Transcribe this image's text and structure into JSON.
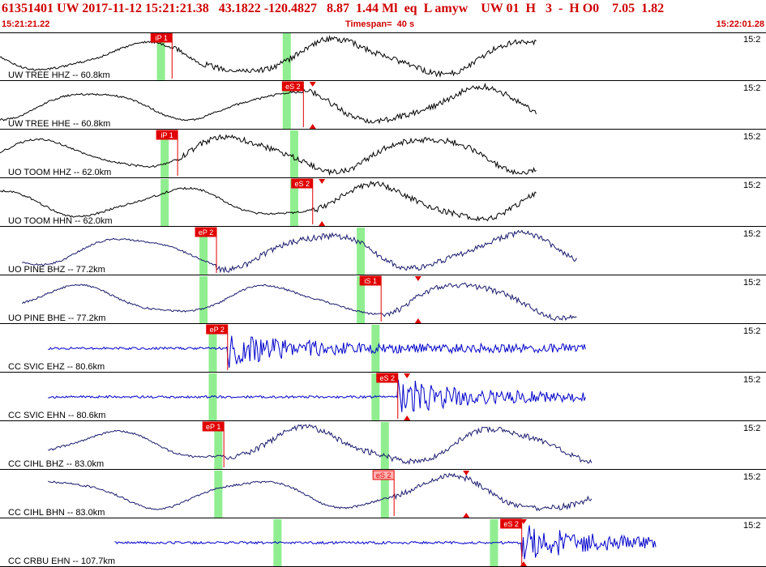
{
  "header": {
    "title": "61351401 UW 2017-11-12 15:21:21.38   43.1822 -120.4827   8.87  1.44 Ml  eq  L amyw    UW 01  H   3  -  H O0    7.05  1.82",
    "start_time": "15:21:21.22",
    "timespan": "Timespan=  40 s",
    "end_time": "15:22:01.28"
  },
  "chart_data": {
    "type": "line",
    "title": "",
    "x_unit": "s",
    "xlim": [
      0,
      40
    ],
    "right_time_label": "15:2",
    "colors": {
      "pick_box": "#e00000",
      "pick_box_light": "#ffb0b0",
      "marker": "#e00000",
      "highlight": "#90ee90",
      "separator": "#000000"
    },
    "traces": [
      {
        "label": "UW TREE HHZ -- 60.8km",
        "color": "#000000",
        "style": "smooth",
        "x_start": 0.0,
        "x_end": 29.0,
        "picks": [
          {
            "label": "iP 1",
            "t": 9.3,
            "kind": "solid"
          }
        ],
        "highlights": [
          8.7,
          15.5
        ],
        "markers": []
      },
      {
        "label": "UW TREE HHE -- 60.8km",
        "color": "#000000",
        "style": "smooth",
        "x_start": 0.0,
        "x_end": 29.0,
        "picks": [
          {
            "label": "eS 2",
            "t": 16.4,
            "kind": "solid"
          }
        ],
        "highlights": [
          15.5
        ],
        "markers": [
          16.9
        ]
      },
      {
        "label": "UO TOOM HHZ -- 62.0km",
        "color": "#000000",
        "style": "smooth",
        "x_start": 0.0,
        "x_end": 29.0,
        "picks": [
          {
            "label": "iP 1",
            "t": 9.6,
            "kind": "solid"
          }
        ],
        "highlights": [
          8.9,
          15.9
        ],
        "markers": []
      },
      {
        "label": "UO TOOM HHN -- 62.0km",
        "color": "#000000",
        "style": "smooth",
        "x_start": 0.0,
        "x_end": 29.0,
        "picks": [
          {
            "label": "eS 2",
            "t": 16.9,
            "kind": "solid"
          }
        ],
        "highlights": [
          8.9,
          15.9
        ],
        "markers": [
          17.4
        ]
      },
      {
        "label": "UO PINE BHZ -- 77.2km",
        "color": "#1a1a6e",
        "style": "smooth",
        "x_start": 1.2,
        "x_end": 31.2,
        "picks": [
          {
            "label": "eP 2",
            "t": 11.7,
            "kind": "solid"
          }
        ],
        "highlights": [
          11.0,
          19.5
        ],
        "markers": []
      },
      {
        "label": "UO PINE BHE -- 77.2km",
        "color": "#1a1a6e",
        "style": "smooth",
        "x_start": 1.2,
        "x_end": 31.2,
        "picks": [
          {
            "label": "iS 1",
            "t": 20.6,
            "kind": "solid"
          }
        ],
        "highlights": [
          11.0,
          19.5
        ],
        "markers": [
          22.6
        ]
      },
      {
        "label": "CC SVIC EHZ -- 80.6km",
        "color": "#0000cc",
        "style": "noise",
        "x_start": 2.6,
        "x_end": 31.7,
        "picks": [
          {
            "label": "eP 2",
            "t": 12.3,
            "kind": "solid"
          }
        ],
        "highlights": [
          11.5,
          20.3
        ],
        "markers": []
      },
      {
        "label": "CC SVIC EHN -- 80.6km",
        "color": "#0000cc",
        "style": "noise",
        "x_start": 2.6,
        "x_end": 31.7,
        "picks": [
          {
            "label": "eS 2",
            "t": 21.5,
            "kind": "solid"
          }
        ],
        "highlights": [
          11.5,
          20.3
        ],
        "markers": [
          22.0
        ]
      },
      {
        "label": "CC CIHL BHZ -- 83.0km",
        "color": "#1a1a6e",
        "style": "smooth",
        "x_start": 2.6,
        "x_end": 32.0,
        "picks": [
          {
            "label": "eP 1",
            "t": 12.1,
            "kind": "solid"
          }
        ],
        "highlights": [
          11.8,
          20.8
        ],
        "markers": []
      },
      {
        "label": "CC CIHL BHN -- 83.0km",
        "color": "#1a1a6e",
        "style": "smooth",
        "x_start": 2.6,
        "x_end": 32.0,
        "picks": [
          {
            "label": "eS 2",
            "t": 21.3,
            "kind": "light"
          }
        ],
        "highlights": [
          11.8,
          20.8
        ],
        "markers": [
          25.2
        ]
      },
      {
        "label": "CC CRBU EHN -- 107.7km",
        "color": "#0000cc",
        "style": "noise",
        "x_start": 6.2,
        "x_end": 35.5,
        "picks": [
          {
            "label": "eS 2",
            "t": 28.2,
            "kind": "solid"
          }
        ],
        "highlights": [
          15.0,
          26.7
        ],
        "markers": [
          28.3
        ]
      }
    ]
  }
}
